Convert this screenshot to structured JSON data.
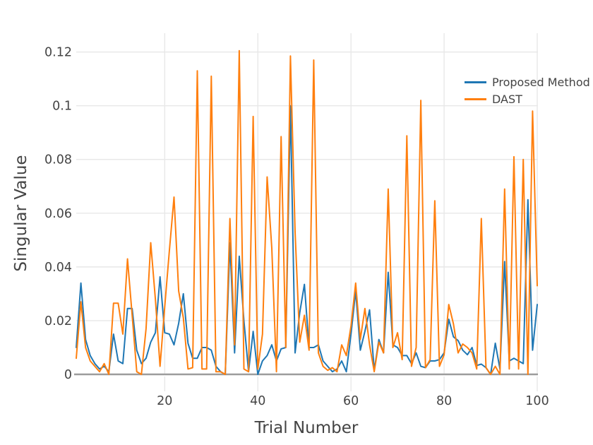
{
  "chart_data": {
    "type": "line",
    "title": "",
    "xlabel": "Trial Number",
    "ylabel": "Singular Value",
    "xlim": [
      1,
      100
    ],
    "ylim": [
      0,
      0.127
    ],
    "grid": true,
    "legend_position": "top-right",
    "xticks": [
      20,
      40,
      60,
      80,
      100
    ],
    "xtick_labels": [
      "20",
      "40",
      "60",
      "80",
      "100"
    ],
    "yticks": [
      0,
      0.02,
      0.04,
      0.06,
      0.08,
      0.1,
      0.12
    ],
    "ytick_labels": [
      "0",
      "0.02",
      "0.04",
      "0.06",
      "0.08",
      "0.1",
      "0.12"
    ],
    "x": [
      1,
      2,
      3,
      4,
      5,
      6,
      7,
      8,
      9,
      10,
      11,
      12,
      13,
      14,
      15,
      16,
      17,
      18,
      19,
      20,
      21,
      22,
      23,
      24,
      25,
      26,
      27,
      28,
      29,
      30,
      31,
      32,
      33,
      34,
      35,
      36,
      37,
      38,
      39,
      40,
      41,
      42,
      43,
      44,
      45,
      46,
      47,
      48,
      49,
      50,
      51,
      52,
      53,
      54,
      55,
      56,
      57,
      58,
      59,
      60,
      61,
      62,
      63,
      64,
      65,
      66,
      67,
      68,
      69,
      70,
      71,
      72,
      73,
      74,
      75,
      76,
      77,
      78,
      79,
      80,
      81,
      82,
      83,
      84,
      85,
      86,
      87,
      88,
      89,
      90,
      91,
      92,
      93,
      94,
      95,
      96,
      97,
      98,
      99,
      100
    ],
    "series": [
      {
        "name": "Proposed Method",
        "color": "#1f77b4",
        "values": [
          0.01,
          0.034,
          0.013,
          0.007,
          0.004,
          0.002,
          0.003,
          0.001,
          0.015,
          0.005,
          0.004,
          0.0245,
          0.0245,
          0.009,
          0.004,
          0.006,
          0.012,
          0.0155,
          0.0363,
          0.0155,
          0.015,
          0.011,
          0.019,
          0.03,
          0.0116,
          0.006,
          0.006,
          0.01,
          0.01,
          0.009,
          0.003,
          0.001,
          0.0,
          0.049,
          0.008,
          0.044,
          0.02,
          0.001,
          0.016,
          0.0,
          0.005,
          0.007,
          0.011,
          0.005,
          0.0095,
          0.01,
          0.1,
          0.008,
          0.023,
          0.0335,
          0.01,
          0.01,
          0.011,
          0.005,
          0.003,
          0.001,
          0.002,
          0.005,
          0.001,
          0.015,
          0.031,
          0.009,
          0.016,
          0.024,
          0.0015,
          0.013,
          0.008,
          0.038,
          0.011,
          0.01,
          0.007,
          0.007,
          0.004,
          0.008,
          0.003,
          0.0025,
          0.005,
          0.005,
          0.0055,
          0.008,
          0.0205,
          0.014,
          0.0126,
          0.009,
          0.0073,
          0.01,
          0.0033,
          0.0038,
          0.0025,
          0.0,
          0.0116,
          0.002,
          0.042,
          0.005,
          0.006,
          0.005,
          0.004,
          0.065,
          0.009,
          0.026
        ]
      },
      {
        "name": "DAST",
        "color": "#ff7f0e",
        "values": [
          0.006,
          0.027,
          0.01,
          0.005,
          0.003,
          0.001,
          0.004,
          0.0,
          0.0265,
          0.0265,
          0.015,
          0.043,
          0.022,
          0.001,
          0.0,
          0.017,
          0.049,
          0.028,
          0.003,
          0.025,
          0.046,
          0.066,
          0.031,
          0.021,
          0.002,
          0.0025,
          0.113,
          0.002,
          0.002,
          0.111,
          0.001,
          0.001,
          0.0,
          0.058,
          0.011,
          0.1205,
          0.002,
          0.001,
          0.096,
          0.002,
          0.015,
          0.0735,
          0.047,
          0.001,
          0.0885,
          0.01,
          0.1185,
          0.053,
          0.012,
          0.022,
          0.009,
          0.117,
          0.008,
          0.003,
          0.0015,
          0.0025,
          0.001,
          0.011,
          0.007,
          0.018,
          0.034,
          0.013,
          0.0245,
          0.011,
          0.001,
          0.012,
          0.008,
          0.069,
          0.01,
          0.0155,
          0.0055,
          0.0888,
          0.003,
          0.01,
          0.102,
          0.0025,
          0.0055,
          0.0646,
          0.003,
          0.0073,
          0.026,
          0.0188,
          0.008,
          0.0113,
          0.01,
          0.008,
          0.002,
          0.058,
          0.0025,
          0.0,
          0.003,
          0.0,
          0.069,
          0.002,
          0.081,
          0.002,
          0.08,
          0.0,
          0.098,
          0.033
        ]
      }
    ],
    "style": {
      "grid_color": "#e8e8e8",
      "axis_line_color": "#9c9c9c",
      "tick_label_color": "#444444",
      "line_width": 2
    }
  },
  "legend": {
    "items": [
      {
        "label": "Proposed Method",
        "color": "#1f77b4"
      },
      {
        "label": "DAST",
        "color": "#ff7f0e"
      }
    ]
  }
}
